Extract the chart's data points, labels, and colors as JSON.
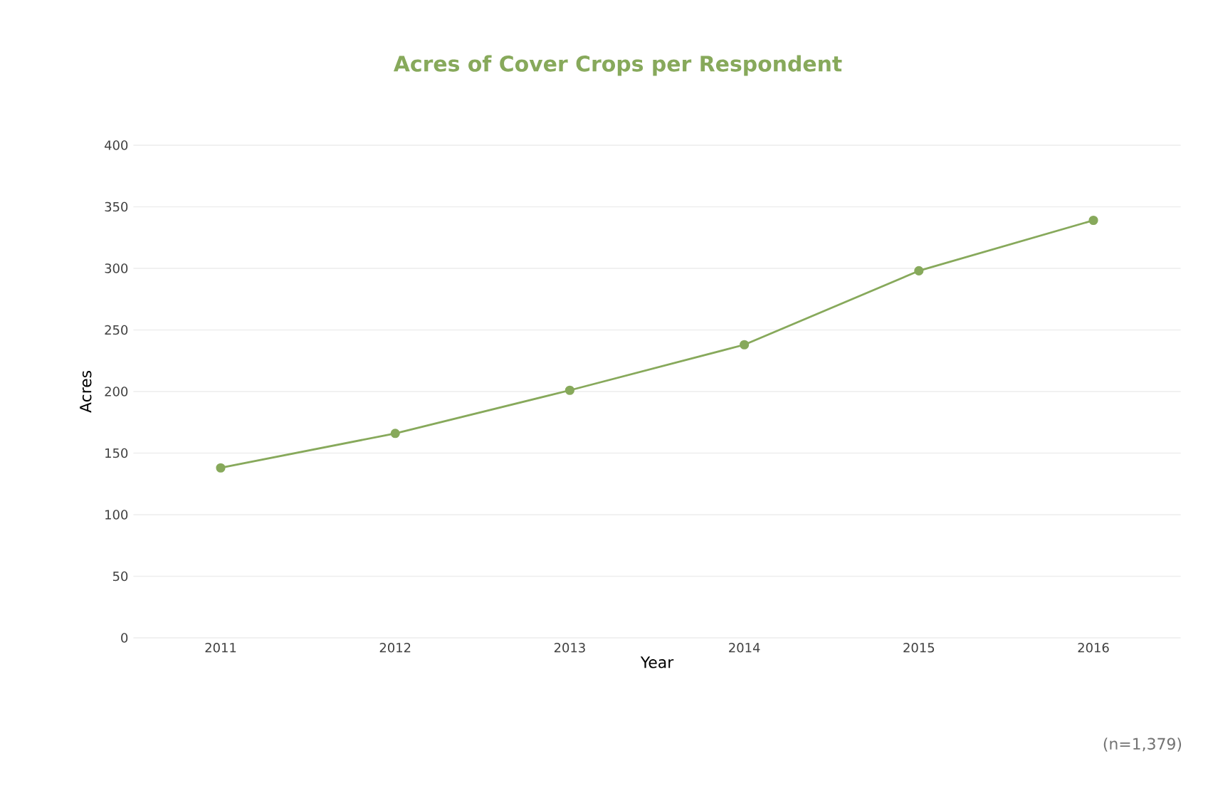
{
  "chart_data": {
    "type": "line",
    "title": "Acres of Cover Crops per Respondent",
    "xlabel": "Year",
    "ylabel": "Acres",
    "categories": [
      "2011",
      "2012",
      "2013",
      "2014",
      "2015",
      "2016"
    ],
    "series": [
      {
        "color": "#87a95b",
        "values": [
          138,
          166,
          201,
          238,
          298,
          339
        ]
      }
    ],
    "ylim": [
      0,
      400
    ],
    "yticks": [
      0,
      50,
      100,
      150,
      200,
      250,
      300,
      350,
      400
    ],
    "grid": "y",
    "marker": "circle",
    "annotations": [
      "(n=1,379)"
    ]
  }
}
